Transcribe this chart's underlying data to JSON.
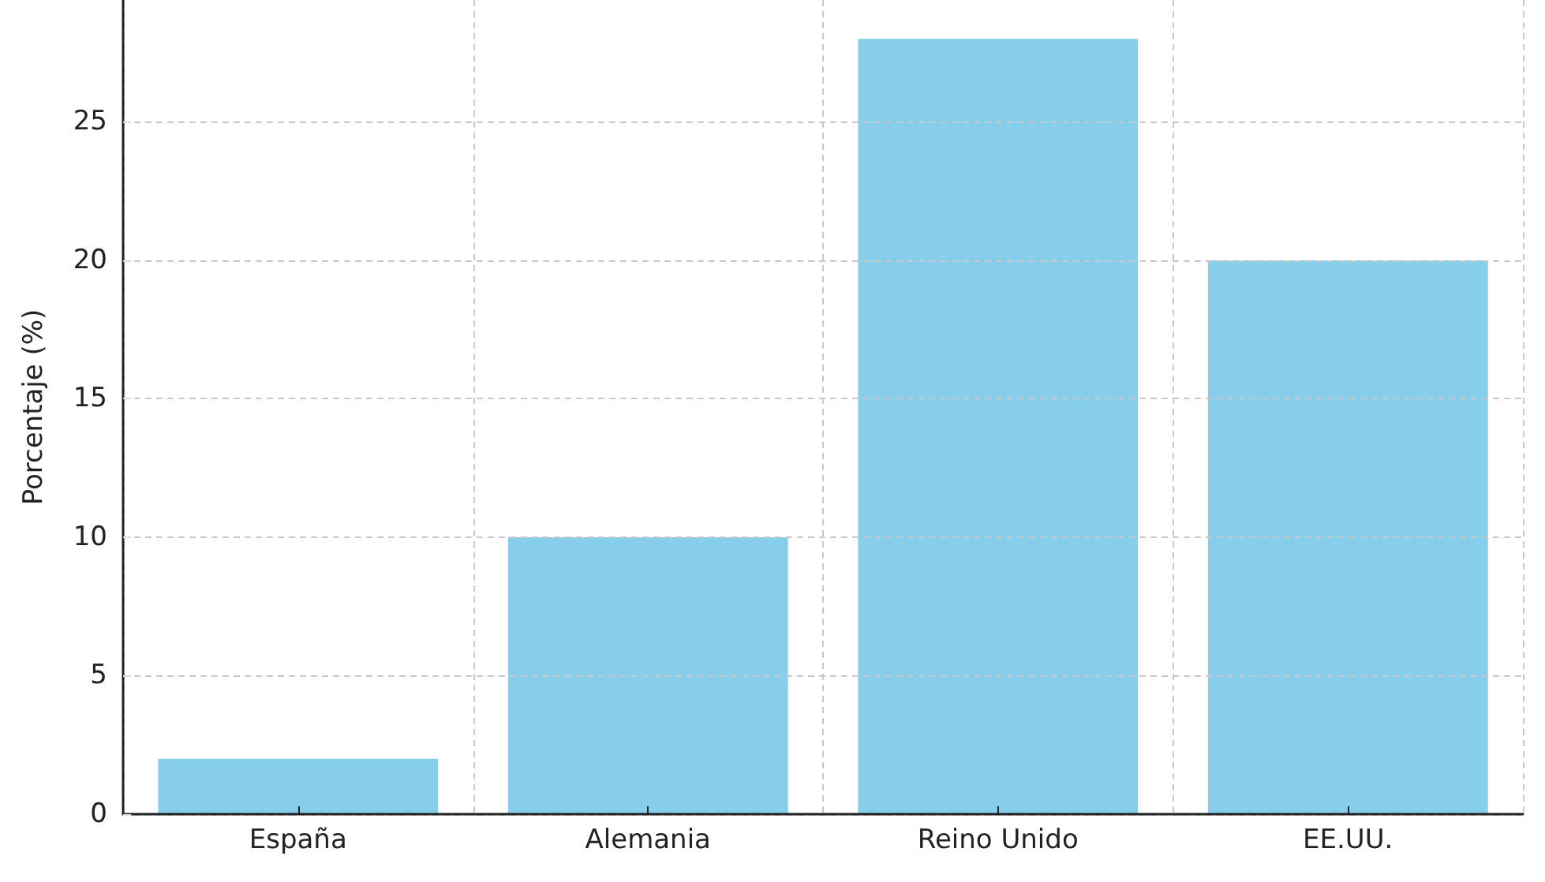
{
  "chart_data": {
    "type": "bar",
    "ylabel": "Porcentaje (%)",
    "categories": [
      "España",
      "Alemania",
      "Reino Unido",
      "EE.UU."
    ],
    "values": [
      2,
      10,
      28,
      20
    ],
    "color": "#87ceeb",
    "ylim": [
      0,
      29.4
    ],
    "yticks": [
      0,
      5,
      10,
      15,
      20,
      25
    ],
    "grid": true
  }
}
